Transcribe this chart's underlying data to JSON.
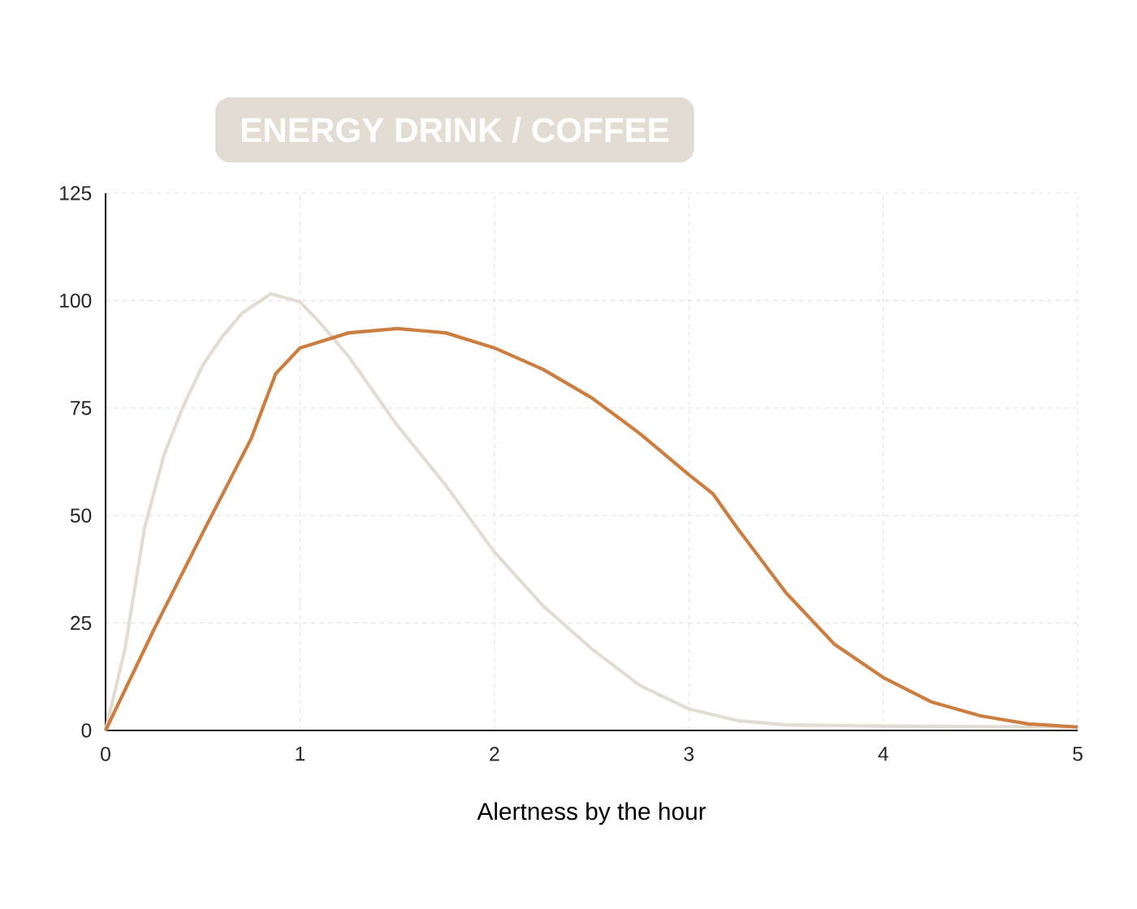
{
  "chart_data": {
    "type": "line",
    "xlabel": "Alertness by the hour",
    "xlim": [
      0,
      5
    ],
    "xticks": [
      0,
      1,
      2,
      3,
      4,
      5
    ],
    "ylim": [
      0,
      125
    ],
    "yticks": [
      0,
      25,
      50,
      75,
      100,
      125
    ],
    "grid": true,
    "legend": "top",
    "marker": "none",
    "line_style": "solid",
    "series": [
      {
        "name": "ENERGY DRINK / COFFEE",
        "color": "#e3dcd2",
        "x": [
          0,
          0.1,
          0.2,
          0.3,
          0.4,
          0.5,
          0.6,
          0.7,
          0.85,
          1.0,
          1.1,
          1.25,
          1.5,
          1.75,
          2.0,
          2.25,
          2.5,
          2.75,
          3.0,
          3.25,
          3.5,
          4.0,
          5.0
        ],
        "values": [
          0,
          19,
          47,
          64,
          75.5,
          85,
          91.6,
          97,
          101.6,
          99.7,
          95,
          87,
          71,
          57,
          41.5,
          29,
          19,
          10.4,
          5,
          2.3,
          1.3,
          1,
          0.8
        ]
      },
      {
        "color": "#cc7d40",
        "x": [
          0,
          0.25,
          0.5,
          0.75,
          0.875,
          1.0,
          1.25,
          1.5,
          1.75,
          2.0,
          2.25,
          2.5,
          2.75,
          3.0,
          3.125,
          3.25,
          3.5,
          3.75,
          4.0,
          4.25,
          4.5,
          4.75,
          5.0
        ],
        "values": [
          0,
          23.6,
          46,
          68,
          83,
          89,
          92.5,
          93.5,
          92.5,
          89,
          84,
          77.4,
          69,
          59.5,
          55,
          47,
          32,
          20,
          12.3,
          6.6,
          3.4,
          1.5,
          0.8
        ]
      }
    ]
  }
}
